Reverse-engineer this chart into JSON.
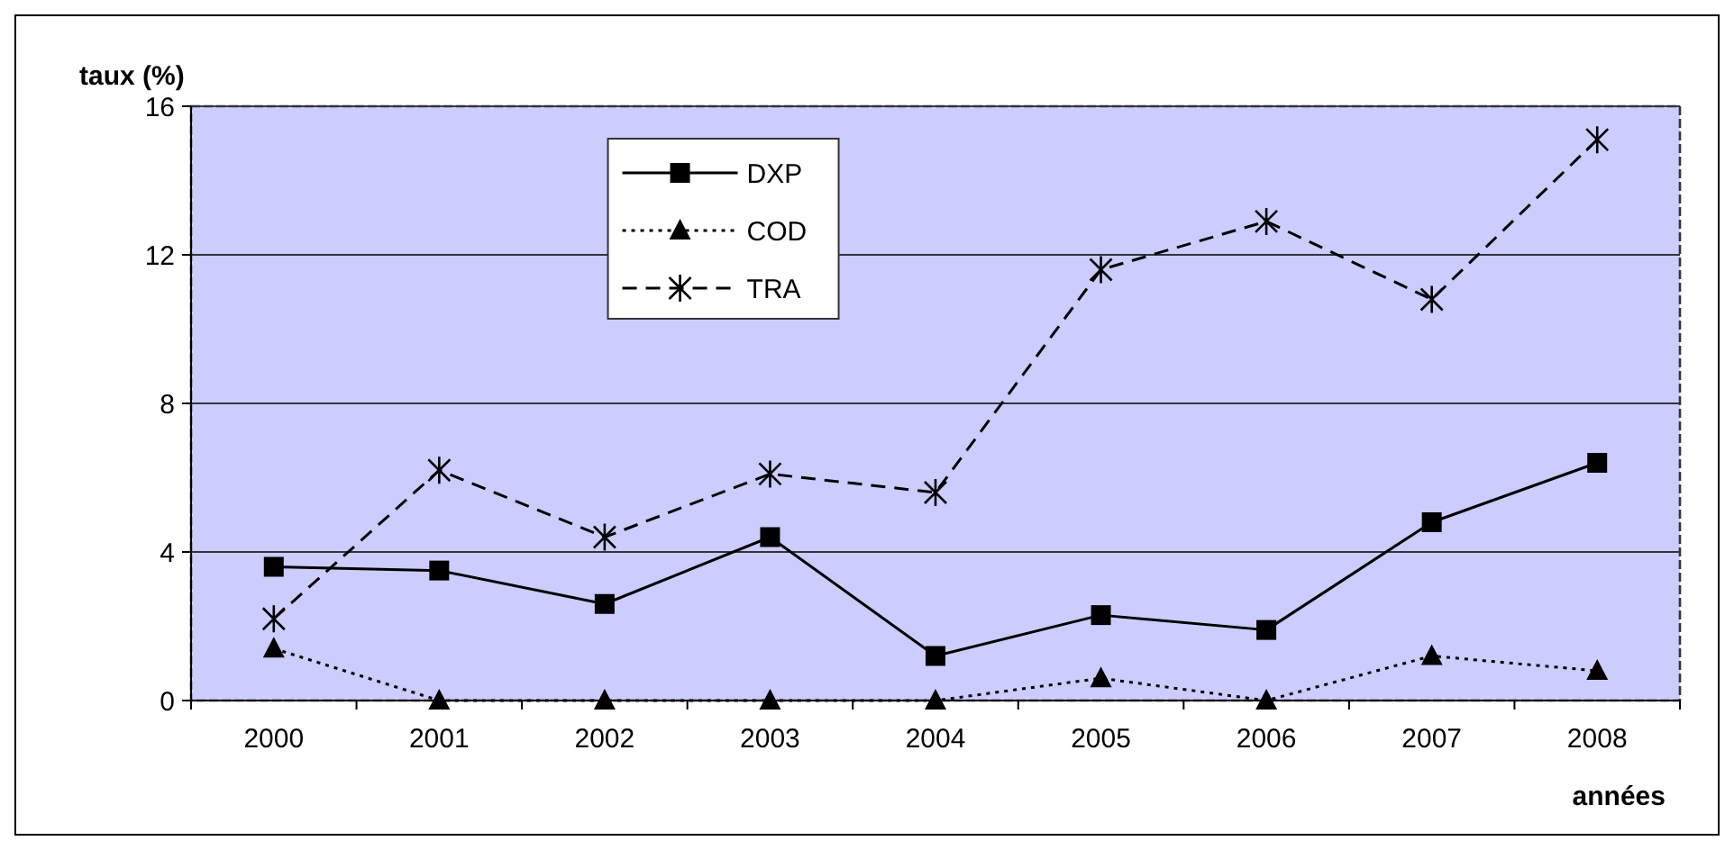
{
  "chart_data": {
    "type": "line",
    "ylabel": "taux (%)",
    "xlabel": "années",
    "categories": [
      "2000",
      "2001",
      "2002",
      "2003",
      "2004",
      "2005",
      "2006",
      "2007",
      "2008"
    ],
    "series": [
      {
        "name": "DXP",
        "color": "#000000",
        "marker": "square",
        "line_style": "solid",
        "values": [
          3.6,
          3.5,
          2.6,
          4.4,
          1.2,
          2.3,
          1.9,
          4.8,
          6.4
        ]
      },
      {
        "name": "COD",
        "color": "#000000",
        "marker": "triangle",
        "line_style": "dotted",
        "values": [
          1.4,
          0,
          0,
          0,
          0,
          0.6,
          0,
          1.2,
          0.8
        ]
      },
      {
        "name": "TRA",
        "color": "#000000",
        "marker": "cross",
        "line_style": "dashed",
        "values": [
          2.2,
          6.2,
          4.4,
          6.1,
          5.6,
          11.6,
          12.9,
          10.8,
          15.1
        ]
      }
    ],
    "ylim": [
      0,
      16
    ],
    "yticks": [
      0,
      4,
      8,
      12,
      16
    ],
    "grid": "y",
    "legend": "top left"
  }
}
